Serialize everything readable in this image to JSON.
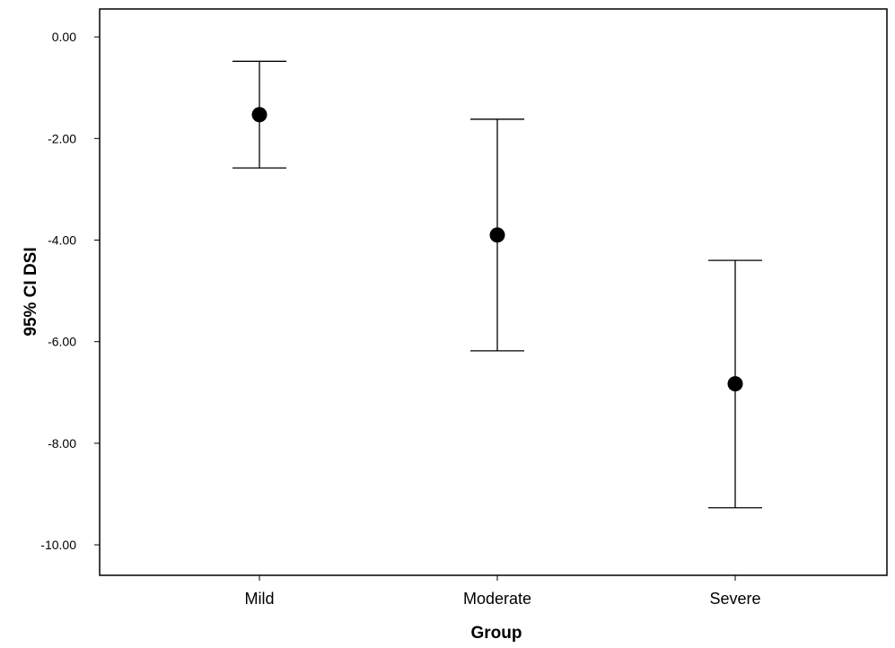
{
  "chart_data": {
    "type": "errorbar",
    "title": "",
    "xlabel": "Group",
    "ylabel": "95% CI DSI",
    "categories": [
      "Mild",
      "Moderate",
      "Severe"
    ],
    "series": [
      {
        "means": [
          -1.53,
          -3.9,
          -6.83
        ],
        "ci_upper": [
          -0.48,
          -1.62,
          -4.4
        ],
        "ci_lower": [
          -2.58,
          -6.18,
          -9.27
        ]
      }
    ],
    "ylim": [
      -10.6,
      0.55
    ],
    "yticks": [
      0,
      -2,
      -4,
      -6,
      -8,
      -10
    ],
    "ytick_labels": [
      "0.00",
      "-2.00",
      "-4.00",
      "-6.00",
      "-8.00",
      "-10.00"
    ],
    "grid": false,
    "legend": "none",
    "colors": {
      "marker": "#000000",
      "whisker": "#000000",
      "axis": "#000000",
      "background": "#ffffff"
    }
  }
}
